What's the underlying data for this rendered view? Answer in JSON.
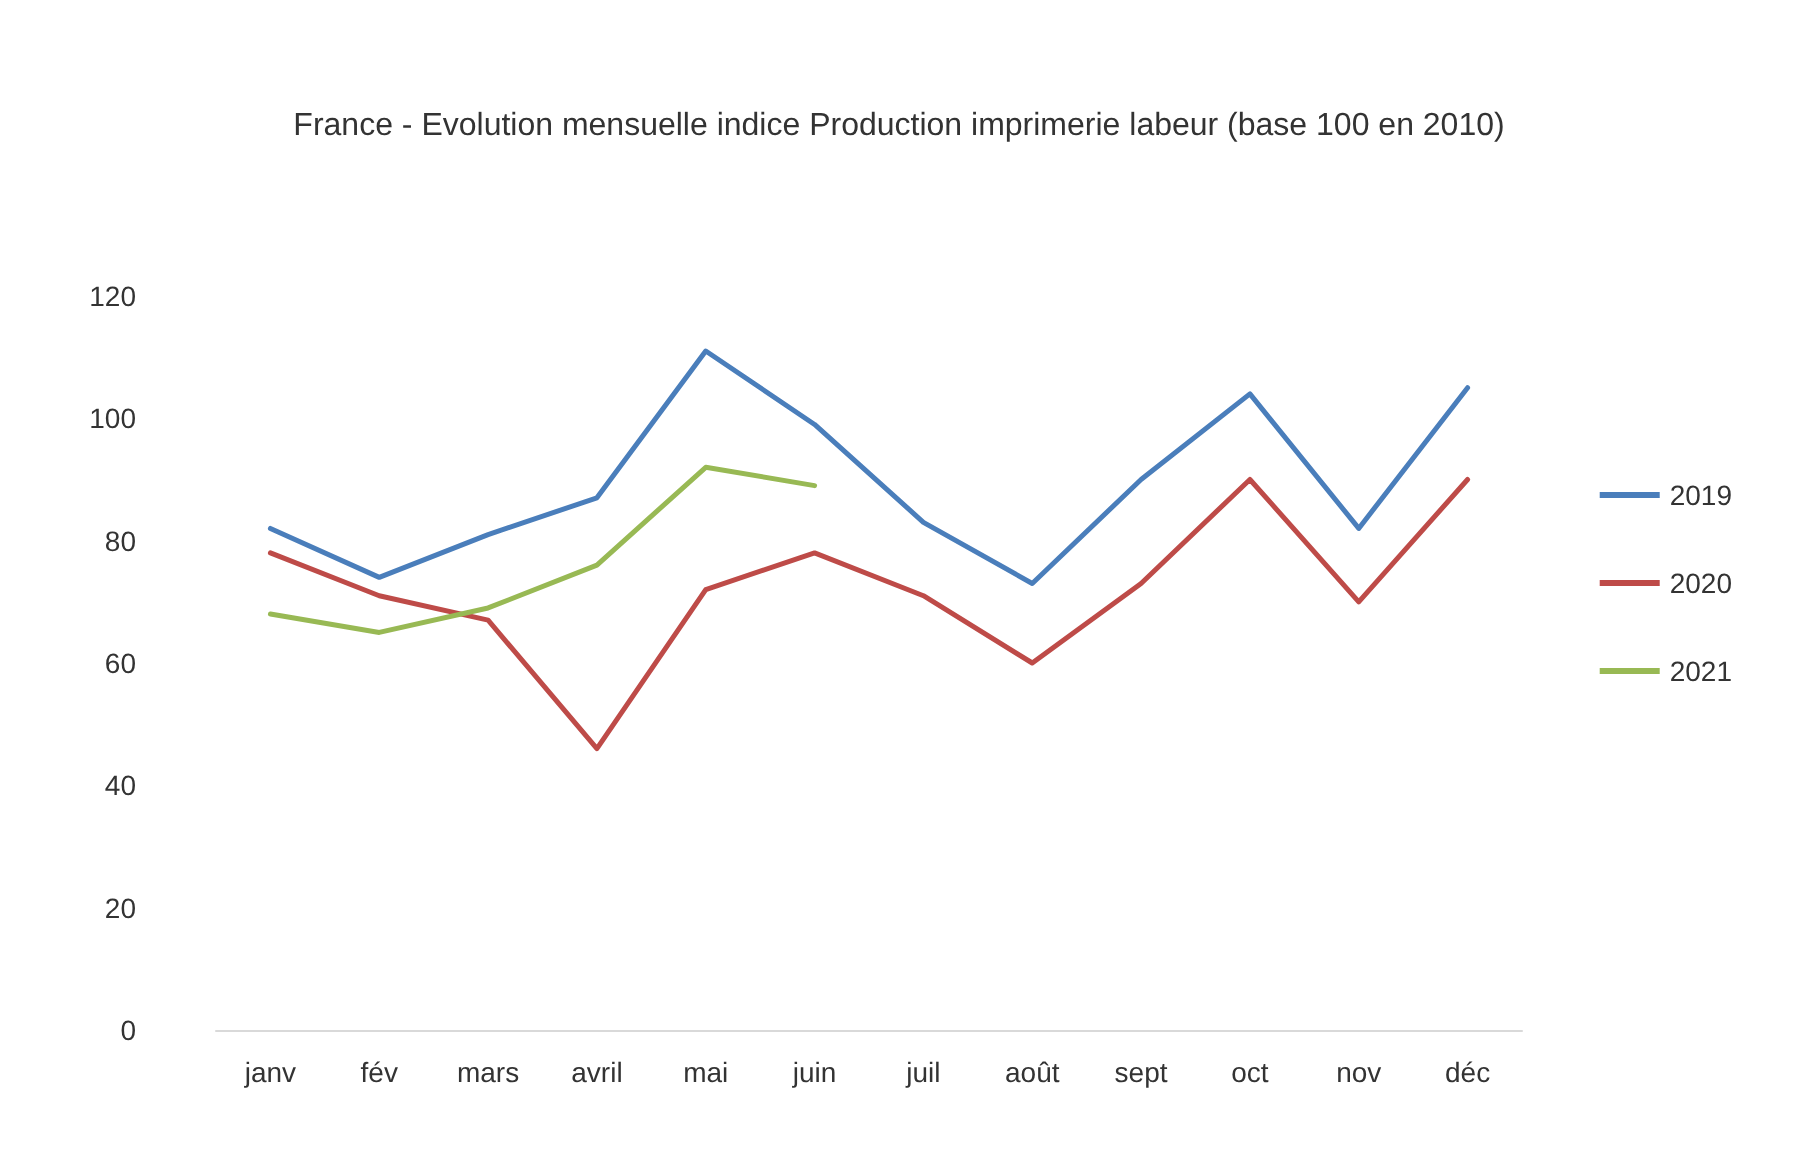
{
  "chart_data": {
    "type": "line",
    "title": "France - Evolution mensuelle indice Production imprimerie labeur (base 100 en 2010)",
    "categories": [
      "janv",
      "fév",
      "mars",
      "avril",
      "mai",
      "juin",
      "juil",
      "août",
      "sept",
      "oct",
      "nov",
      "déc"
    ],
    "series": [
      {
        "name": "2019",
        "color": "#4a7ebb",
        "values": [
          82,
          74,
          81,
          87,
          111,
          99,
          83,
          73,
          90,
          104,
          82,
          105
        ]
      },
      {
        "name": "2020",
        "color": "#be4b48",
        "values": [
          78,
          71,
          67,
          46,
          72,
          78,
          71,
          60,
          73,
          90,
          70,
          90
        ]
      },
      {
        "name": "2021",
        "color": "#98b954",
        "values": [
          68,
          65,
          69,
          76,
          92,
          89,
          null,
          null,
          null,
          null,
          null,
          null
        ]
      }
    ],
    "ylim": [
      0,
      120
    ],
    "yticks": [
      0,
      20,
      40,
      60,
      80,
      100,
      120
    ],
    "grid": false,
    "legend": "right",
    "marker": "none",
    "line_style": "solid"
  }
}
